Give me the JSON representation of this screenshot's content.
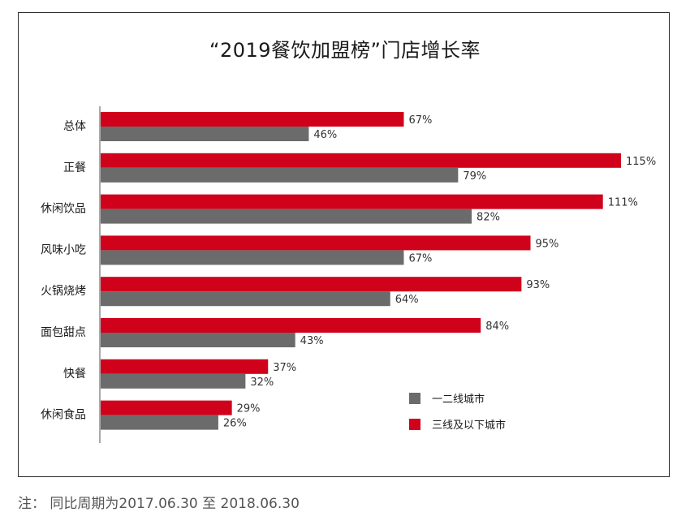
{
  "chart_data": {
    "type": "bar",
    "orientation": "horizontal",
    "title": "“2019餐饮加盟榜”门店增长率",
    "categories": [
      "总体",
      "正餐",
      "休闲饮品",
      "风味小吃",
      "火锅烧烤",
      "面包甜点",
      "快餐",
      "休闲食品"
    ],
    "series": [
      {
        "name": "三线及以下城市",
        "color": "#d0021b",
        "values": [
          67,
          115,
          111,
          95,
          93,
          84,
          37,
          29
        ],
        "labels": [
          "67%",
          "115%",
          "111%",
          "95%",
          "93%",
          "84%",
          "37%",
          "29%"
        ]
      },
      {
        "name": "一二线城市",
        "color": "#6b6b6b",
        "values": [
          46,
          79,
          82,
          67,
          64,
          43,
          32,
          26
        ],
        "labels": [
          "46%",
          "79%",
          "82%",
          "67%",
          "64%",
          "43%",
          "32%",
          "26%"
        ]
      }
    ],
    "legend": [
      {
        "name": "一二线城市",
        "color": "#6b6b6b"
      },
      {
        "name": "三线及以下城市",
        "color": "#d0021b"
      }
    ],
    "xlim": [
      0,
      115
    ],
    "xlabel": "",
    "ylabel": ""
  },
  "note": "注：  同比周期为2017.06.30 至 2018.06.30"
}
